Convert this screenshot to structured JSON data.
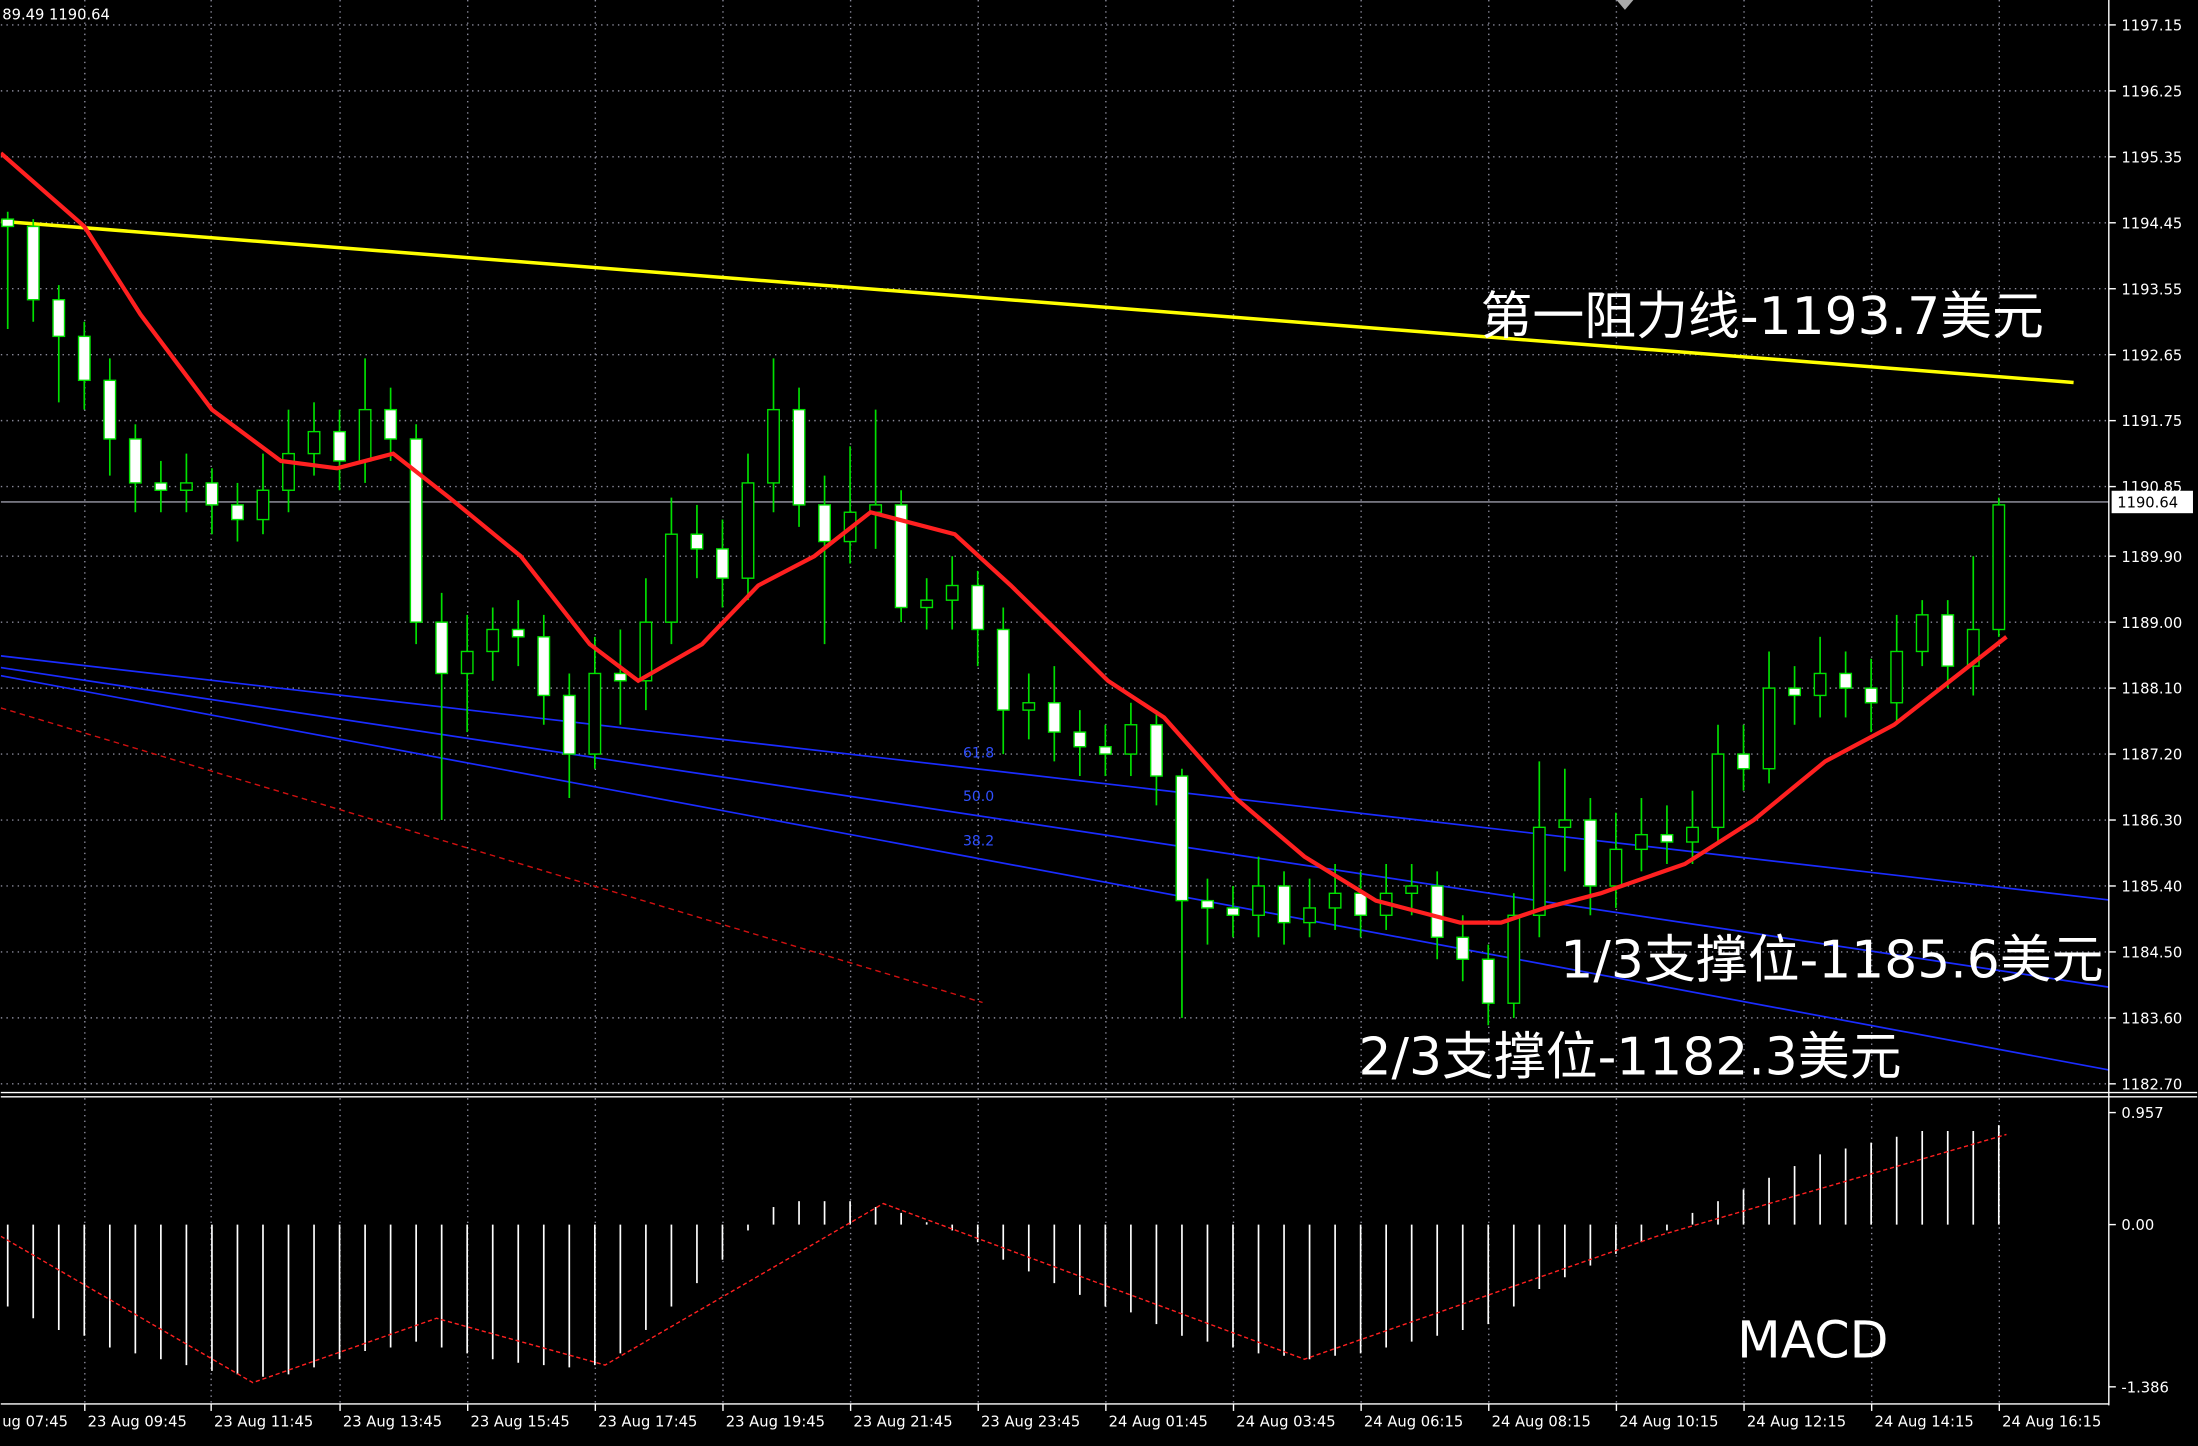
{
  "chart_data": [
    {
      "type": "candlestick",
      "header": "89.49 1190.64",
      "xlim": [
        -0.27,
        82.31
      ],
      "ylim": [
        1182.6,
        1197.49
      ],
      "yticks": [
        1197.15,
        1196.25,
        1195.35,
        1194.45,
        1193.55,
        1192.65,
        1191.75,
        1190.85,
        {
          "value": 1189.9,
          "label": "1189.90"
        },
        {
          "value": 1189,
          "label": "1189.00"
        },
        {
          "value": 1188.1,
          "label": "1188.10"
        },
        {
          "value": 1187.2,
          "label": "1187.20"
        },
        {
          "value": 1186.3,
          "label": "1186.30"
        },
        {
          "value": 1185.4,
          "label": "1185.40"
        },
        {
          "value": 1184.5,
          "label": "1184.50"
        },
        {
          "value": 1183.6,
          "label": "1183.60"
        },
        {
          "value": 1182.7,
          "label": "1182.70"
        }
      ],
      "grid": true,
      "grid_color": "#8a8a9a",
      "bull_color": "#000000",
      "bear_color": "#ffffff",
      "candle_outline": "#00e000",
      "open": [
        1194.5,
        1194.4,
        1193.4,
        1192.9,
        1192.3,
        1191.5,
        1190.9,
        1190.8,
        1190.9,
        1190.6,
        1190.4,
        1190.8,
        1191.3,
        1191.6,
        1191.2,
        1191.9,
        1191.5,
        1189.0,
        1188.3,
        1188.6,
        1188.9,
        1188.8,
        1188.0,
        1187.2,
        1188.3,
        1188.2,
        1189.0,
        1190.2,
        1190.0,
        1189.6,
        1190.9,
        1191.9,
        1190.6,
        1190.1,
        1190.5,
        1190.6,
        1189.2,
        1189.3,
        1189.5,
        1188.9,
        1187.8,
        1187.9,
        1187.5,
        1187.3,
        1187.2,
        1187.6,
        1186.9,
        1185.2,
        1185.1,
        1185.0,
        1185.4,
        1184.9,
        1185.1,
        1185.3,
        1185.0,
        1185.3,
        1185.4,
        1184.7,
        1184.4,
        1183.8,
        1185.0,
        1186.2,
        1186.3,
        1185.4,
        1185.9,
        1186.1,
        1186.0,
        1186.2,
        1187.2,
        1187.0,
        1188.1,
        1188.0,
        1188.3,
        1188.1,
        1187.9,
        1188.6,
        1189.1,
        1188.4,
        1188.9
      ],
      "high": [
        1194.6,
        1194.5,
        1193.6,
        1193.1,
        1192.6,
        1191.7,
        1191.2,
        1191.3,
        1191.1,
        1190.9,
        1191.3,
        1191.9,
        1192.0,
        1191.9,
        1192.6,
        1192.2,
        1191.7,
        1189.4,
        1189.1,
        1189.2,
        1189.3,
        1189.1,
        1188.3,
        1188.8,
        1188.9,
        1189.6,
        1190.7,
        1190.6,
        1190.4,
        1191.3,
        1192.6,
        1192.2,
        1191.0,
        1191.4,
        1191.9,
        1190.8,
        1189.6,
        1189.9,
        1189.7,
        1189.2,
        1188.3,
        1188.4,
        1187.8,
        1187.6,
        1187.9,
        1187.8,
        1187.0,
        1185.5,
        1185.4,
        1185.8,
        1185.6,
        1185.5,
        1185.7,
        1185.6,
        1185.7,
        1185.7,
        1185.6,
        1185.0,
        1184.6,
        1185.3,
        1187.1,
        1187.0,
        1186.6,
        1186.4,
        1186.6,
        1186.5,
        1186.7,
        1187.6,
        1187.6,
        1188.6,
        1188.4,
        1188.8,
        1188.6,
        1188.5,
        1189.1,
        1189.3,
        1189.3,
        1189.9,
        1190.7
      ],
      "low": [
        1193.0,
        1193.1,
        1192.0,
        1191.9,
        1191.0,
        1190.5,
        1190.5,
        1190.5,
        1190.2,
        1190.1,
        1190.2,
        1190.5,
        1191.0,
        1190.8,
        1190.9,
        1191.2,
        1188.7,
        1186.3,
        1187.5,
        1188.2,
        1188.4,
        1187.6,
        1186.6,
        1187.0,
        1187.6,
        1187.8,
        1188.7,
        1189.6,
        1189.2,
        1189.3,
        1190.5,
        1190.3,
        1188.7,
        1189.8,
        1190.0,
        1189.0,
        1188.9,
        1188.9,
        1188.4,
        1187.2,
        1187.4,
        1187.1,
        1186.9,
        1186.9,
        1186.9,
        1186.5,
        1183.6,
        1184.6,
        1184.7,
        1184.7,
        1184.6,
        1184.7,
        1184.8,
        1184.7,
        1184.8,
        1185.0,
        1184.4,
        1184.1,
        1183.5,
        1183.6,
        1184.7,
        1185.6,
        1185.0,
        1185.1,
        1185.6,
        1185.7,
        1185.7,
        1186.0,
        1186.7,
        1186.8,
        1187.6,
        1187.7,
        1187.7,
        1187.5,
        1187.6,
        1188.4,
        1188.1,
        1188.0,
        1188.8
      ],
      "close": [
        1194.4,
        1193.4,
        1192.9,
        1192.3,
        1191.5,
        1190.9,
        1190.8,
        1190.9,
        1190.6,
        1190.4,
        1190.8,
        1191.3,
        1191.6,
        1191.2,
        1191.9,
        1191.5,
        1189.0,
        1188.3,
        1188.6,
        1188.9,
        1188.8,
        1188.0,
        1187.2,
        1188.3,
        1188.2,
        1189.0,
        1190.2,
        1190.0,
        1189.6,
        1190.9,
        1191.9,
        1190.6,
        1190.1,
        1190.5,
        1190.6,
        1189.2,
        1189.3,
        1189.5,
        1188.9,
        1187.8,
        1187.9,
        1187.5,
        1187.3,
        1187.2,
        1187.6,
        1186.9,
        1185.2,
        1185.1,
        1185.0,
        1185.4,
        1184.9,
        1185.1,
        1185.3,
        1185.0,
        1185.3,
        1185.4,
        1184.7,
        1184.4,
        1183.8,
        1185.0,
        1186.2,
        1186.3,
        1185.4,
        1185.9,
        1186.1,
        1186.0,
        1186.2,
        1187.2,
        1187.0,
        1188.1,
        1188.0,
        1188.3,
        1188.1,
        1187.9,
        1188.6,
        1189.1,
        1188.4,
        1188.9,
        1190.6
      ],
      "ma": {
        "color": "#ff2020",
        "x": [
          -0.27,
          3.0,
          5.2,
          8.0,
          10.7,
          12.9,
          15.1,
          17.3,
          20.1,
          22.8,
          24.7,
          27.2,
          29.4,
          31.6,
          33.8,
          37.1,
          39.3,
          43.1,
          45.3,
          48.1,
          50.8,
          53.6,
          56.9,
          58.5,
          60.2,
          62.4,
          65.7,
          68.4,
          71.2,
          73.9,
          76.1,
          78.3
        ],
        "values": [
          1195.4,
          1194.4,
          1193.2,
          1191.9,
          1191.2,
          1191.1,
          1191.3,
          1190.7,
          1189.9,
          1188.7,
          1188.2,
          1188.7,
          1189.5,
          1189.9,
          1190.5,
          1190.2,
          1189.5,
          1188.2,
          1187.7,
          1186.6,
          1185.8,
          1185.2,
          1184.9,
          1184.9,
          1185.1,
          1185.3,
          1185.7,
          1186.3,
          1187.1,
          1187.6,
          1188.2,
          1188.8
        ]
      },
      "lines": [
        {
          "color": "#ffff00",
          "x": [
            -0.27,
            80.93
          ],
          "values": [
            1194.47,
            1192.27
          ]
        },
        {
          "color": "#1a2cff",
          "x": [
            -0.27,
            82.31
          ],
          "values": [
            1188.54,
            1185.21
          ]
        },
        {
          "color": "#1a2cff",
          "x": [
            -0.27,
            82.31
          ],
          "values": [
            1188.38,
            1184.02
          ]
        },
        {
          "color": "#1a2cff",
          "x": [
            -0.27,
            82.31
          ],
          "values": [
            1188.27,
            1182.89
          ]
        },
        {
          "color": "#d01010",
          "dashed": true,
          "x": [
            -0.27,
            38.19
          ],
          "values": [
            1187.83,
            1183.81
          ]
        }
      ],
      "fib_labels": [
        "61.8",
        "50.0",
        "38.2"
      ],
      "current_price": {
        "value": 1190.64,
        "label": "1190.64"
      },
      "annotations": [
        "第一阻力线-1193.7美元",
        "1/3支撑位-1185.6美元",
        "2/3支撑位-1182.3美元"
      ]
    },
    {
      "type": "macd",
      "label": "MACD",
      "xlim": [
        -0.27,
        82.31
      ],
      "ylim": [
        -1.52,
        1.08
      ],
      "yticks": [
        0.957,
        {
          "value": 0,
          "label": "0.00"
        },
        -1.386
      ],
      "histogram_color": "#ffffff",
      "histogram": [
        -0.7,
        -0.8,
        -0.9,
        -0.95,
        -1.05,
        -1.1,
        -1.15,
        -1.2,
        -1.25,
        -1.28,
        -1.3,
        -1.28,
        -1.22,
        -1.15,
        -1.08,
        -1.05,
        -1.0,
        -1.05,
        -1.1,
        -1.15,
        -1.18,
        -1.2,
        -1.22,
        -1.2,
        -1.1,
        -0.9,
        -0.7,
        -0.5,
        -0.3,
        -0.05,
        0.15,
        0.2,
        0.2,
        0.2,
        0.15,
        0.1,
        0.02,
        -0.05,
        -0.15,
        -0.3,
        -0.4,
        -0.5,
        -0.6,
        -0.7,
        -0.75,
        -0.85,
        -0.95,
        -1.0,
        -1.05,
        -1.1,
        -1.12,
        -1.15,
        -1.12,
        -1.1,
        -1.05,
        -1.0,
        -0.95,
        -0.9,
        -0.85,
        -0.7,
        -0.55,
        -0.45,
        -0.35,
        -0.25,
        -0.15,
        -0.05,
        0.1,
        0.2,
        0.3,
        0.4,
        0.5,
        0.6,
        0.65,
        0.7,
        0.75,
        0.8,
        0.8,
        0.8,
        0.85
      ],
      "signal": {
        "color": "#ff2020",
        "x": [
          -0.27,
          9.6,
          16.8,
          23.4,
          34.3,
          50.8,
          64.6,
          78.3
        ],
        "values": [
          -0.1,
          -1.35,
          -0.8,
          -1.2,
          0.18,
          -1.15,
          -0.1,
          0.77
        ]
      },
      "xticks": [
        {
          "value": -1.92,
          "label": "ug 07:45"
        },
        {
          "value": 3.02,
          "label": "23 Aug 09:45"
        },
        {
          "value": 7.97,
          "label": "23 Aug 11:45"
        },
        {
          "value": 13.02,
          "label": "23 Aug 13:45"
        },
        {
          "value": 18.02,
          "label": "23 Aug 15:45"
        },
        {
          "value": 23.02,
          "label": "23 Aug 17:45"
        },
        {
          "value": 28.02,
          "label": "23 Aug 19:45"
        },
        {
          "value": 33.02,
          "label": "23 Aug 21:45"
        },
        {
          "value": 38.02,
          "label": "23 Aug 23:45"
        },
        {
          "value": 43.02,
          "label": "24 Aug 01:45"
        },
        {
          "value": 48.02,
          "label": "24 Aug 03:45"
        },
        {
          "value": 53.02,
          "label": "24 Aug 06:15"
        },
        {
          "value": 58.02,
          "label": "24 Aug 08:15"
        },
        {
          "value": 63.02,
          "label": "24 Aug 10:15"
        },
        {
          "value": 68.02,
          "label": "24 Aug 12:15"
        },
        {
          "value": 73.02,
          "label": "24 Aug 14:15"
        },
        {
          "value": 78.02,
          "label": "24 Aug 16:15"
        }
      ]
    }
  ]
}
